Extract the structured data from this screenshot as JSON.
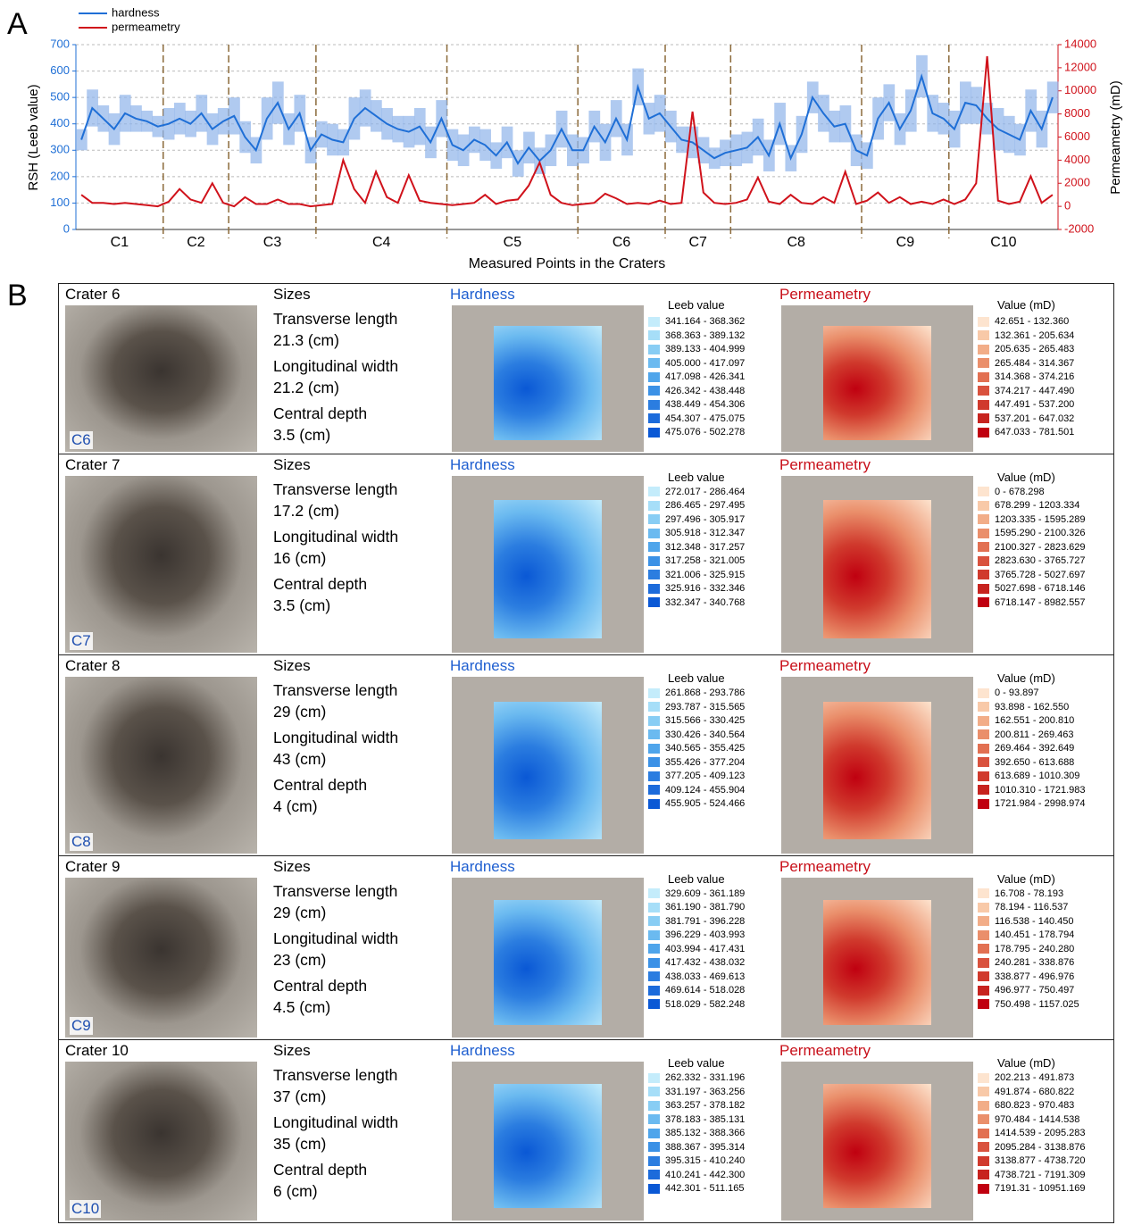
{
  "panel_a_label": "A",
  "panel_b_label": "B",
  "chart_data": {
    "type": "line",
    "x_label": "Measured Points in the Craters",
    "y_label": "RSH (Leeb value)",
    "y2_label": "Permeametry (mD)",
    "ylim": [
      0,
      700
    ],
    "yticks": [
      0,
      100,
      200,
      300,
      400,
      500,
      600,
      700
    ],
    "y2lim": [
      -2000,
      14000
    ],
    "y2ticks": [
      -2000,
      0,
      2000,
      4000,
      6000,
      8000,
      10000,
      12000,
      14000
    ],
    "grid": true,
    "legend": "top-left",
    "groups": [
      {
        "label": "C1",
        "count": 8
      },
      {
        "label": "C2",
        "count": 6
      },
      {
        "label": "C3",
        "count": 8
      },
      {
        "label": "C4",
        "count": 12
      },
      {
        "label": "C5",
        "count": 12
      },
      {
        "label": "C6",
        "count": 8
      },
      {
        "label": "C7",
        "count": 6
      },
      {
        "label": "C8",
        "count": 12
      },
      {
        "label": "C9",
        "count": 8
      },
      {
        "label": "C10",
        "count": 10
      }
    ],
    "series": [
      {
        "name": "hardness",
        "color": "#1f6fd6",
        "band_color": "#8fb3ea",
        "values": [
          340,
          460,
          420,
          380,
          440,
          420,
          410,
          390,
          400,
          420,
          400,
          440,
          380,
          410,
          430,
          350,
          300,
          420,
          480,
          380,
          440,
          300,
          360,
          340,
          330,
          420,
          460,
          430,
          400,
          380,
          370,
          390,
          330,
          420,
          320,
          300,
          340,
          320,
          280,
          330,
          250,
          310,
          260,
          300,
          380,
          300,
          300,
          390,
          330,
          420,
          340,
          540,
          420,
          440,
          390,
          340,
          330,
          300,
          270,
          290,
          300,
          310,
          350,
          280,
          400,
          270,
          360,
          500,
          440,
          390,
          400,
          300,
          280,
          420,
          480,
          380,
          450,
          580,
          440,
          420,
          380,
          480,
          470,
          420,
          380,
          360,
          340,
          450,
          380,
          500
        ],
        "error": [
          40,
          70,
          50,
          60,
          70,
          50,
          40,
          40,
          60,
          60,
          50,
          70,
          60,
          50,
          70,
          60,
          50,
          80,
          80,
          60,
          70,
          50,
          50,
          60,
          50,
          80,
          70,
          60,
          60,
          50,
          60,
          70,
          60,
          70,
          60,
          60,
          50,
          60,
          50,
          60,
          50,
          60,
          50,
          60,
          70,
          60,
          50,
          60,
          70,
          70,
          60,
          70,
          60,
          70,
          60,
          50,
          60,
          50,
          40,
          50,
          60,
          60,
          70,
          60,
          80,
          50,
          70,
          60,
          70,
          60,
          70,
          60,
          50,
          80,
          70,
          60,
          80,
          80,
          70,
          60,
          70,
          80,
          70,
          60,
          80,
          70,
          60,
          80,
          70,
          60
        ]
      },
      {
        "name": "permeametry",
        "color": "#d0121b",
        "axis": "y2",
        "values": [
          1000,
          300,
          300,
          200,
          300,
          200,
          100,
          0,
          400,
          1500,
          600,
          300,
          2000,
          300,
          0,
          800,
          200,
          200,
          600,
          200,
          200,
          0,
          100,
          200,
          4000,
          1500,
          300,
          3000,
          800,
          300,
          2700,
          500,
          300,
          200,
          100,
          200,
          300,
          1000,
          200,
          500,
          600,
          1800,
          3800,
          1000,
          300,
          100,
          200,
          300,
          1100,
          700,
          200,
          300,
          200,
          500,
          200,
          300,
          8200,
          1200,
          300,
          200,
          300,
          600,
          2500,
          400,
          200,
          1000,
          300,
          200,
          800,
          300,
          3000,
          200,
          500,
          1200,
          300,
          800,
          200,
          400,
          200,
          600,
          200,
          600,
          2000,
          13000,
          500,
          200,
          400,
          2600,
          300,
          1000
        ]
      }
    ]
  },
  "panel_b": {
    "hardness_colors": [
      "#c4ecfb",
      "#a6def8",
      "#88cdf4",
      "#6bbaf0",
      "#4fa5eb",
      "#3b91e6",
      "#2b7de0",
      "#1c6bdb",
      "#0a58d5"
    ],
    "permeametry_colors": [
      "#fde4cf",
      "#f8c9a8",
      "#f2ad88",
      "#ea8f6b",
      "#e27052",
      "#d9523e",
      "#d03a2d",
      "#c7231f",
      "#c00010"
    ],
    "craters": [
      {
        "name": "Crater 6",
        "tag": "C6",
        "sizes_title": "Sizes",
        "sizes": [
          {
            "label": "Transverse length",
            "value": "21.3 (cm)"
          },
          {
            "label": "Longitudinal width",
            "value": "21.2 (cm)"
          },
          {
            "label": "Central depth",
            "value": "3.5 (cm)"
          }
        ],
        "hardness": {
          "title": "Hardness",
          "unit": "Leeb value",
          "ranges": [
            "341.164 - 368.362",
            "368.363 - 389.132",
            "389.133 - 404.999",
            "405.000 - 417.097",
            "417.098 - 426.341",
            "426.342 - 438.448",
            "438.449 - 454.306",
            "454.307 - 475.075",
            "475.076 - 502.278"
          ]
        },
        "permeametry": {
          "title": "Permeametry",
          "unit": "Value (mD)",
          "ranges": [
            "42.651 - 132.360",
            "132.361 - 205.634",
            "205.635 - 265.483",
            "265.484 - 314.367",
            "314.368 - 374.216",
            "374.217 - 447.490",
            "447.491 - 537.200",
            "537.201 - 647.032",
            "647.033 - 781.501"
          ]
        }
      },
      {
        "name": "Crater 7",
        "tag": "C7",
        "sizes_title": "Sizes",
        "sizes": [
          {
            "label": "Transverse length",
            "value": "17.2 (cm)"
          },
          {
            "label": "Longitudinal width",
            "value": "16 (cm)"
          },
          {
            "label": "Central depth",
            "value": "3.5 (cm)"
          }
        ],
        "hardness": {
          "title": "Hardness",
          "unit": "Leeb value",
          "ranges": [
            "272.017 - 286.464",
            "286.465 - 297.495",
            "297.496 - 305.917",
            "305.918 - 312.347",
            "312.348 - 317.257",
            "317.258 - 321.005",
            "321.006 - 325.915",
            "325.916 - 332.346",
            "332.347 - 340.768"
          ]
        },
        "permeametry": {
          "title": "Permeametry",
          "unit": "Value (mD)",
          "ranges": [
            "0 - 678.298",
            "678.299 - 1203.334",
            "1203.335 - 1595.289",
            "1595.290 - 2100.326",
            "2100.327 - 2823.629",
            "2823.630 - 3765.727",
            "3765.728 - 5027.697",
            "5027.698 - 6718.146",
            "6718.147 - 8982.557"
          ]
        }
      },
      {
        "name": "Crater 8",
        "tag": "C8",
        "sizes_title": "Sizes",
        "sizes": [
          {
            "label": "Transverse length",
            "value": "29 (cm)"
          },
          {
            "label": "Longitudinal width",
            "value": "43 (cm)"
          },
          {
            "label": "Central depth",
            "value": "4 (cm)"
          }
        ],
        "hardness": {
          "title": "Hardness",
          "unit": "Leeb value",
          "ranges": [
            "261.868 - 293.786",
            "293.787 - 315.565",
            "315.566 - 330.425",
            "330.426 - 340.564",
            "340.565 - 355.425",
            "355.426 - 377.204",
            "377.205 - 409.123",
            "409.124 - 455.904",
            "455.905 - 524.466"
          ]
        },
        "permeametry": {
          "title": "Permeametry",
          "unit": "Value (mD)",
          "ranges": [
            "0 - 93.897",
            "93.898 - 162.550",
            "162.551 - 200.810",
            "200.811 - 269.463",
            "269.464 - 392.649",
            "392.650 - 613.688",
            "613.689 - 1010.309",
            "1010.310 - 1721.983",
            "1721.984 - 2998.974"
          ]
        }
      },
      {
        "name": "Crater 9",
        "tag": "C9",
        "sizes_title": "Sizes",
        "sizes": [
          {
            "label": "Transverse length",
            "value": "29 (cm)"
          },
          {
            "label": "Longitudinal width",
            "value": "23 (cm)"
          },
          {
            "label": "Central depth",
            "value": "4.5 (cm)"
          }
        ],
        "hardness": {
          "title": "Hardness",
          "unit": "Leeb value",
          "ranges": [
            "329.609 - 361.189",
            "361.190 - 381.790",
            "381.791 - 396.228",
            "396.229 - 403.993",
            "403.994 - 417.431",
            "417.432 - 438.032",
            "438.033 - 469.613",
            "469.614 - 518.028",
            "518.029 - 582.248"
          ]
        },
        "permeametry": {
          "title": "Permeametry",
          "unit": "Value (mD)",
          "ranges": [
            "16.708 - 78.193",
            "78.194 - 116.537",
            "116.538 - 140.450",
            "140.451 - 178.794",
            "178.795 - 240.280",
            "240.281 - 338.876",
            "338.877 - 496.976",
            "496.977 - 750.497",
            "750.498 - 1157.025"
          ]
        }
      },
      {
        "name": "Crater 10",
        "tag": "C10",
        "sizes_title": "Sizes",
        "sizes": [
          {
            "label": "Transverse length",
            "value": "37 (cm)"
          },
          {
            "label": "Longitudinal width",
            "value": "35 (cm)"
          },
          {
            "label": "Central depth",
            "value": "6 (cm)"
          }
        ],
        "hardness": {
          "title": "Hardness",
          "unit": "Leeb value",
          "ranges": [
            "262.332 - 331.196",
            "331.197 - 363.256",
            "363.257 - 378.182",
            "378.183 - 385.131",
            "385.132 - 388.366",
            "388.367 - 395.314",
            "395.315 - 410.240",
            "410.241 - 442.300",
            "442.301 - 511.165"
          ]
        },
        "permeametry": {
          "title": "Permeametry",
          "unit": "Value (mD)",
          "ranges": [
            "202.213 - 491.873",
            "491.874 - 680.822",
            "680.823 - 970.483",
            "970.484 - 1414.538",
            "1414.539 - 2095.283",
            "2095.284 - 3138.876",
            "3138.877 - 4738.720",
            "4738.721 - 7191.309",
            "7191.31 - 10951.169"
          ]
        }
      }
    ]
  }
}
